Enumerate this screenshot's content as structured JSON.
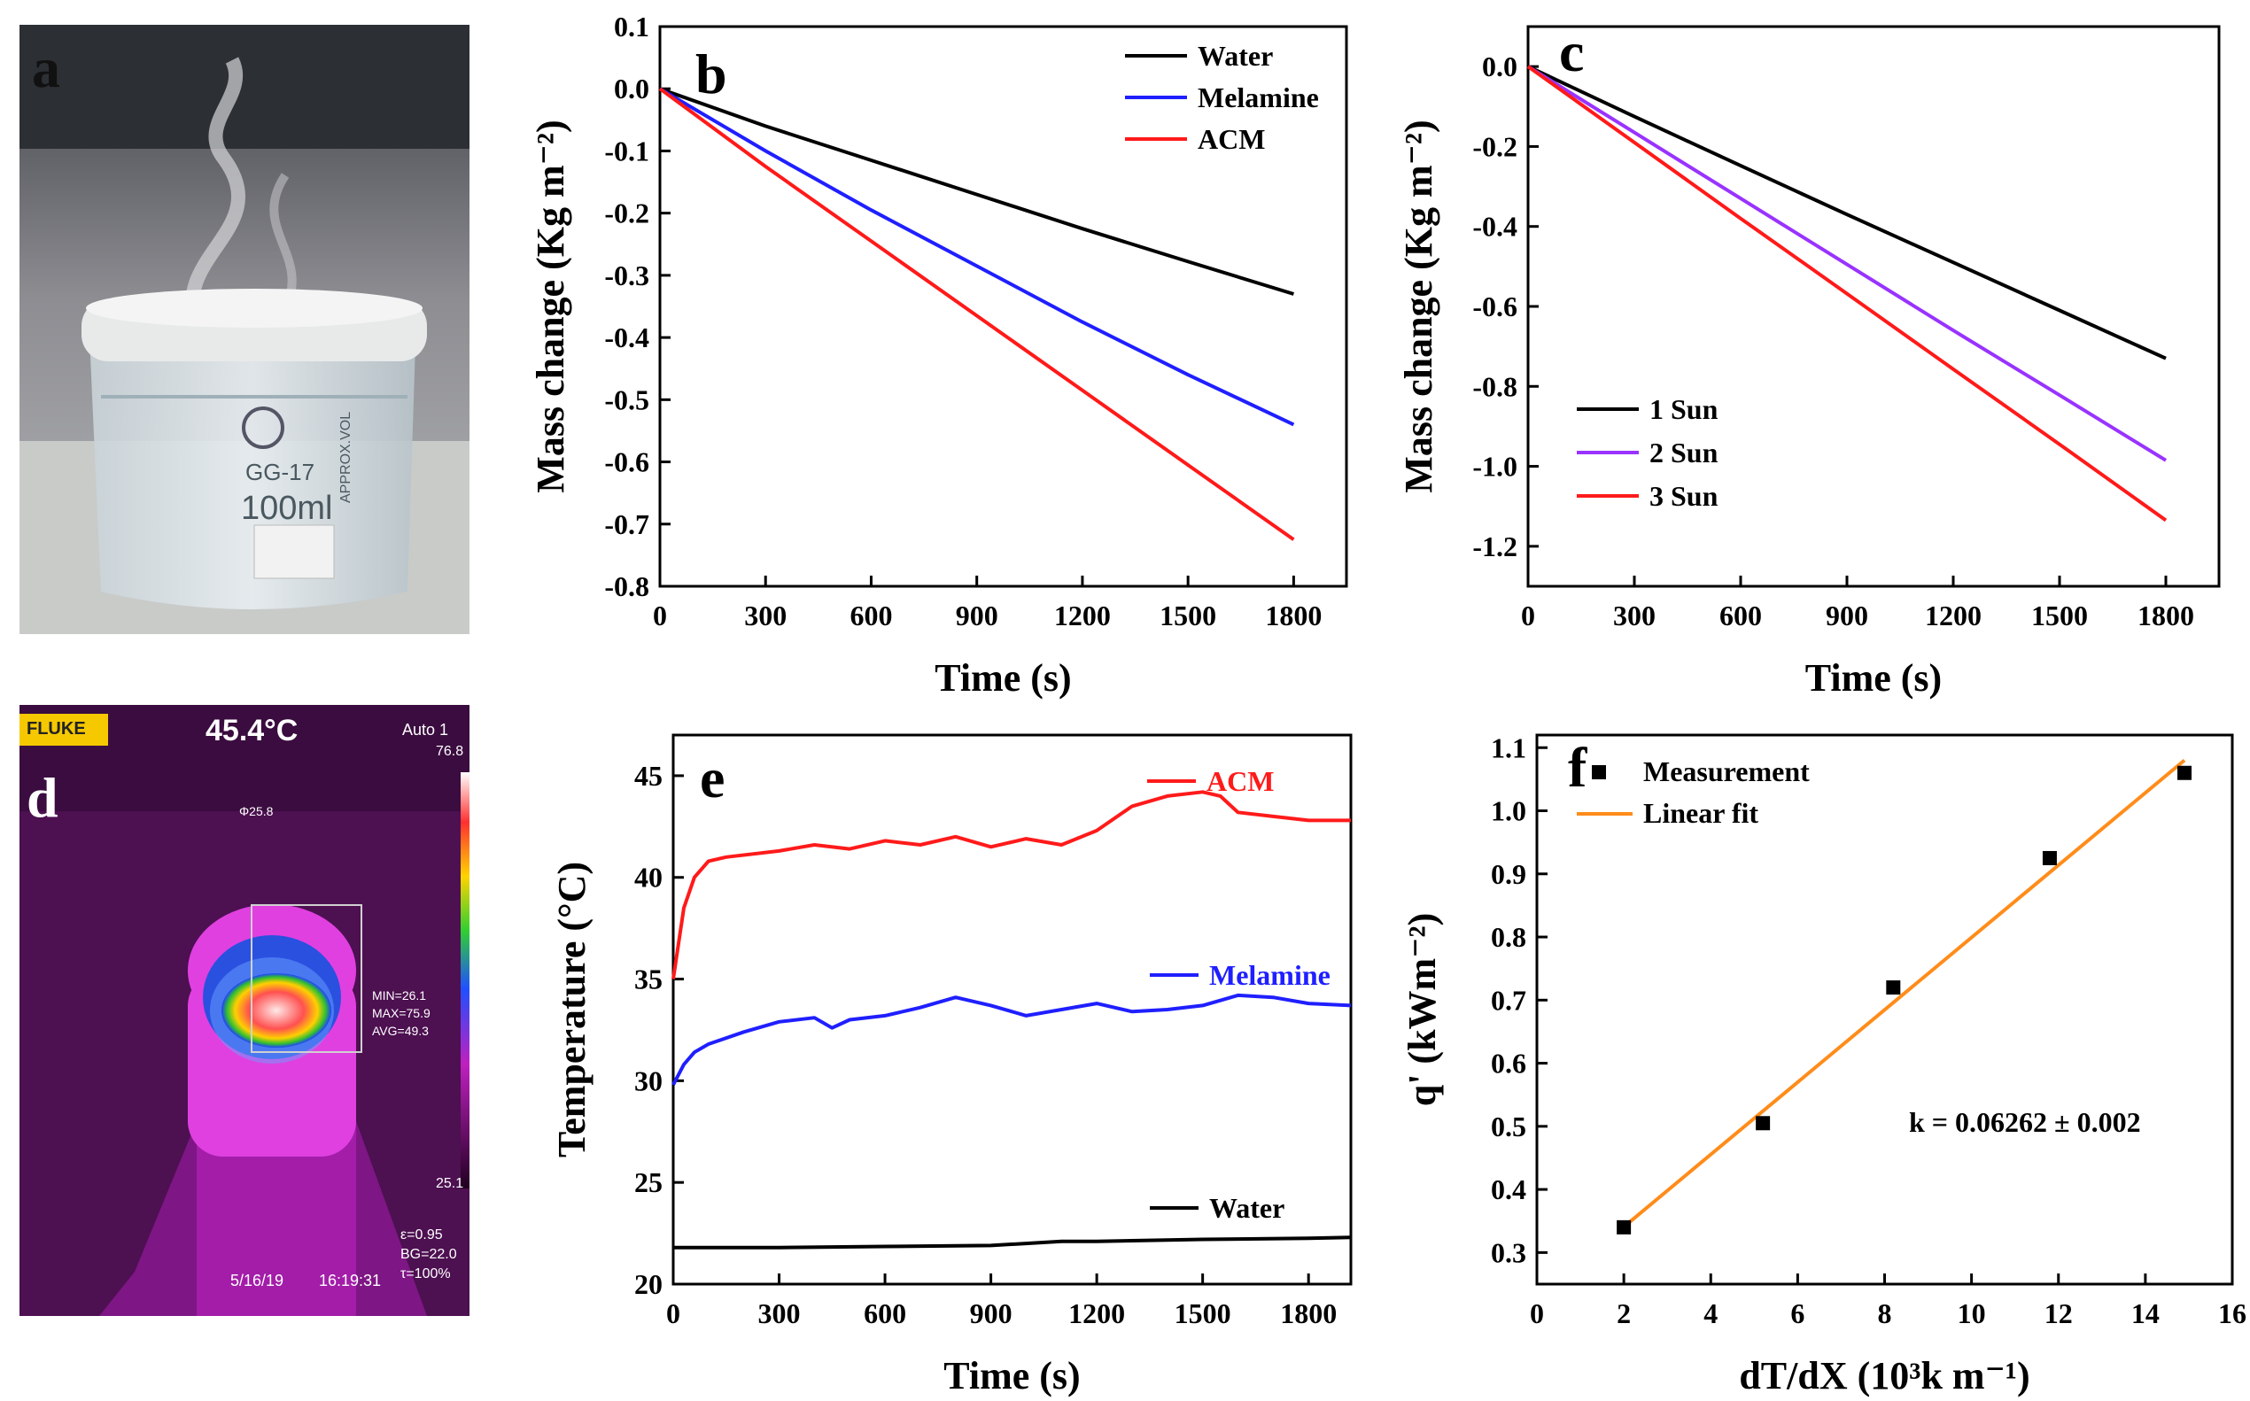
{
  "panel_a": {
    "label": "a",
    "beaker_marks": [
      "GG-17",
      "100ml",
      "APPROX.VOL"
    ]
  },
  "panel_d": {
    "label": "d",
    "brand": "FLUKE",
    "center_temp": "45.4°C",
    "mode": "Auto 1",
    "scale_max": "76.8",
    "scale_min": "25.1",
    "spot": "Φ25.8",
    "stats": [
      "MIN=26.1",
      "MAX=75.9",
      "AVG=49.3"
    ],
    "params": [
      "ε=0.95",
      "BG=22.0",
      "τ=100%"
    ],
    "date": "5/16/19",
    "time": "16:19:31"
  },
  "chart_data": [
    {
      "id": "b",
      "type": "line",
      "label": "b",
      "title": "",
      "xlabel": "Time (s)",
      "ylabel": "Mass change (Kg m⁻²)",
      "xlim": [
        0,
        1950
      ],
      "ylim": [
        -0.8,
        0.1
      ],
      "xticks": [
        0,
        300,
        600,
        900,
        1200,
        1500,
        1800
      ],
      "yticks": [
        0.1,
        0.0,
        -0.1,
        -0.2,
        -0.3,
        -0.4,
        -0.5,
        -0.6,
        -0.7,
        -0.8
      ],
      "ytick_decimals": 1,
      "legend_position": "top-right",
      "series": [
        {
          "name": "Water",
          "color": "#000000",
          "x": [
            0,
            300,
            600,
            900,
            1200,
            1500,
            1800
          ],
          "values": [
            0,
            -0.06,
            -0.115,
            -0.17,
            -0.225,
            -0.278,
            -0.33
          ]
        },
        {
          "name": "Melamine",
          "color": "#1f1fff",
          "x": [
            0,
            300,
            600,
            900,
            1200,
            1500,
            1800
          ],
          "values": [
            0,
            -0.1,
            -0.195,
            -0.285,
            -0.375,
            -0.46,
            -0.54
          ]
        },
        {
          "name": "ACM",
          "color": "#ff1a1a",
          "x": [
            0,
            300,
            600,
            900,
            1200,
            1500,
            1800
          ],
          "values": [
            0,
            -0.125,
            -0.245,
            -0.365,
            -0.485,
            -0.605,
            -0.725
          ]
        }
      ]
    },
    {
      "id": "c",
      "type": "line",
      "label": "c",
      "title": "",
      "xlabel": "Time (s)",
      "ylabel": "Mass change (Kg m⁻²)",
      "xlim": [
        0,
        1950
      ],
      "ylim": [
        -1.3,
        0.1
      ],
      "xticks": [
        0,
        300,
        600,
        900,
        1200,
        1500,
        1800
      ],
      "yticks": [
        0.0,
        -0.2,
        -0.4,
        -0.6,
        -0.8,
        -1.0,
        -1.2
      ],
      "ytick_decimals": 1,
      "legend_position": "bottom-left",
      "series": [
        {
          "name": "1 Sun",
          "color": "#000000",
          "x": [
            0,
            300,
            600,
            900,
            1200,
            1500,
            1800
          ],
          "values": [
            0,
            -0.125,
            -0.248,
            -0.37,
            -0.49,
            -0.61,
            -0.73
          ]
        },
        {
          "name": "2 Sun",
          "color": "#9933ff",
          "x": [
            0,
            300,
            600,
            900,
            1200,
            1500,
            1800
          ],
          "values": [
            0,
            -0.165,
            -0.33,
            -0.495,
            -0.66,
            -0.822,
            -0.985
          ]
        },
        {
          "name": "3 Sun",
          "color": "#ff1a1a",
          "x": [
            0,
            300,
            600,
            900,
            1200,
            1500,
            1800
          ],
          "values": [
            0,
            -0.19,
            -0.38,
            -0.568,
            -0.757,
            -0.945,
            -1.135
          ]
        }
      ]
    },
    {
      "id": "e",
      "type": "line",
      "label": "e",
      "title": "",
      "xlabel": "Time (s)",
      "ylabel": "Temperature (°C)",
      "xlim": [
        0,
        1920
      ],
      "ylim": [
        20,
        47
      ],
      "xticks": [
        0,
        300,
        600,
        900,
        1200,
        1500,
        1800
      ],
      "yticks": [
        20,
        25,
        30,
        35,
        40,
        45
      ],
      "ytick_decimals": 0,
      "legend_position": "inline",
      "series": [
        {
          "name": "ACM",
          "color": "#ff1a1a",
          "x": [
            0,
            30,
            60,
            100,
            150,
            300,
            400,
            500,
            600,
            700,
            800,
            900,
            1000,
            1100,
            1200,
            1300,
            1400,
            1500,
            1550,
            1600,
            1700,
            1800,
            1920
          ],
          "values": [
            35,
            38.5,
            40,
            40.8,
            41.0,
            41.3,
            41.6,
            41.4,
            41.8,
            41.6,
            42.0,
            41.5,
            41.9,
            41.6,
            42.3,
            43.5,
            44.0,
            44.2,
            44.0,
            43.2,
            43.0,
            42.8,
            42.8
          ]
        },
        {
          "name": "Melamine",
          "color": "#1f1fff",
          "x": [
            0,
            30,
            60,
            100,
            200,
            300,
            400,
            450,
            500,
            600,
            700,
            800,
            900,
            1000,
            1100,
            1200,
            1300,
            1400,
            1500,
            1600,
            1700,
            1800,
            1920
          ],
          "values": [
            29.8,
            30.8,
            31.4,
            31.8,
            32.4,
            32.9,
            33.1,
            32.6,
            33.0,
            33.2,
            33.6,
            34.1,
            33.7,
            33.2,
            33.5,
            33.8,
            33.4,
            33.5,
            33.7,
            34.2,
            34.1,
            33.8,
            33.7
          ]
        },
        {
          "name": "Water",
          "color": "#000000",
          "x": [
            0,
            300,
            600,
            900,
            1000,
            1100,
            1200,
            1500,
            1800,
            1920
          ],
          "values": [
            21.8,
            21.8,
            21.85,
            21.9,
            22.0,
            22.1,
            22.1,
            22.2,
            22.25,
            22.3
          ]
        }
      ]
    },
    {
      "id": "f",
      "type": "scatter",
      "label": "f",
      "title": "",
      "xlabel": "dT/dX (10³k m⁻¹)",
      "ylabel": "q' (kWm⁻²)",
      "xlim": [
        0,
        16
      ],
      "ylim": [
        0.25,
        1.12
      ],
      "xticks": [
        0,
        2,
        4,
        6,
        8,
        10,
        12,
        14,
        16
      ],
      "yticks": [
        0.3,
        0.4,
        0.5,
        0.6,
        0.7,
        0.8,
        0.9,
        1.0,
        1.1
      ],
      "ytick_decimals": 1,
      "legend_position": "top-left",
      "points": {
        "name": "Measurement",
        "color": "#000000",
        "x": [
          2.0,
          5.2,
          8.2,
          11.8,
          14.9
        ],
        "values": [
          0.34,
          0.505,
          0.72,
          0.925,
          1.06
        ]
      },
      "fit": {
        "name": "Linear fit",
        "color": "#ff8c1a",
        "x": [
          1.9,
          14.9
        ],
        "values": [
          0.335,
          1.08
        ]
      },
      "annotation": "k = 0.06262 ± 0.002"
    }
  ]
}
